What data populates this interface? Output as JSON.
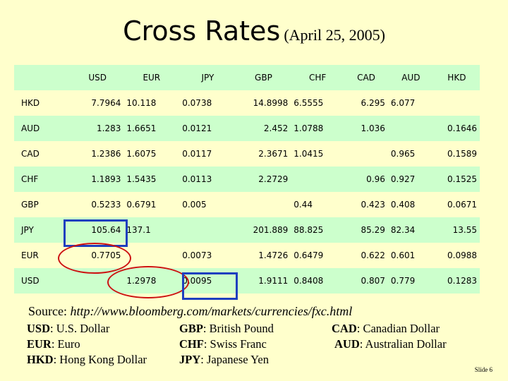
{
  "slide": {
    "title": "Cross Rates",
    "subtitle": "(April 25, 2005)",
    "source_label": "Source:",
    "source_url": "http://www.bloomberg.com/markets/currencies/fxc.html",
    "slide_number": "Slide 6"
  },
  "table": {
    "columns": [
      "",
      "USD",
      "EUR",
      "JPY",
      "GBP",
      "CHF",
      "CAD",
      "AUD",
      "HKD"
    ],
    "rows": [
      [
        "HKD",
        "7.7964",
        "10.118",
        "0.0738",
        "14.8998",
        "6.5555",
        "6.295",
        "6.077",
        ""
      ],
      [
        "AUD",
        "1.283",
        "1.6651",
        "0.0121",
        "2.452",
        "1.0788",
        "1.036",
        "",
        "0.1646"
      ],
      [
        "CAD",
        "1.2386",
        "1.6075",
        "0.0117",
        "2.3671",
        "1.0415",
        "",
        "0.965",
        "0.1589"
      ],
      [
        "CHF",
        "1.1893",
        "1.5435",
        "0.0113",
        "2.2729",
        "",
        "0.96",
        "0.927",
        "0.1525"
      ],
      [
        "GBP",
        "0.5233",
        "0.6791",
        "0.005",
        "",
        "0.44",
        "0.423",
        "0.408",
        "0.0671"
      ],
      [
        "JPY",
        "105.64",
        "137.1",
        "",
        "201.889",
        "88.825",
        "85.29",
        "82.34",
        "13.55"
      ],
      [
        "EUR",
        "0.7705",
        "",
        "0.0073",
        "1.4726",
        "0.6479",
        "0.622",
        "0.601",
        "0.0988"
      ],
      [
        "USD",
        "",
        "1.2978",
        "0.0095",
        "1.9111",
        "0.8408",
        "0.807",
        "0.779",
        "0.1283"
      ]
    ]
  },
  "legend": [
    {
      "code": "USD",
      "name": ": U.S. Dollar"
    },
    {
      "code": "EUR",
      "name": ": Euro"
    },
    {
      "code": "HKD",
      "name": ": Hong Kong Dollar"
    },
    {
      "code": "GBP",
      "name": ": British Pound"
    },
    {
      "code": "CHF",
      "name": ": Swiss Franc"
    },
    {
      "code": "JPY",
      "name": ": Japanese Yen"
    },
    {
      "code": "CAD",
      "name": ": Canadian Dollar"
    },
    {
      "code": "AUD",
      "name": ": Australian Dollar"
    }
  ],
  "colors": {
    "background": "#ffffcc",
    "row_band": "#ccffcc",
    "highlight_box": "#1f3fbf",
    "highlight_oval": "#cc1111"
  }
}
